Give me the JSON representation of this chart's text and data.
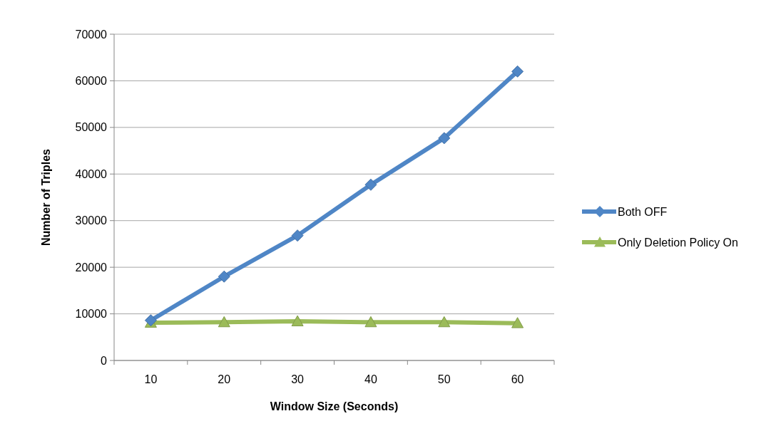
{
  "chart_data": {
    "type": "line",
    "xlabel": "Window Size (Seconds)",
    "ylabel": "Number of Triples",
    "categories": [
      "10",
      "20",
      "30",
      "40",
      "50",
      "60"
    ],
    "series": [
      {
        "name": "Both OFF",
        "color": "#4f86c6",
        "marker": "diamond",
        "values": [
          8600,
          18000,
          26800,
          37700,
          47700,
          62000
        ]
      },
      {
        "name": "Only Deletion Policy On",
        "color": "#9bbb59",
        "marker": "triangle",
        "values": [
          8100,
          8200,
          8400,
          8200,
          8200,
          8000
        ]
      }
    ],
    "ylim": [
      0,
      70000
    ],
    "yticks": [
      0,
      10000,
      20000,
      30000,
      40000,
      50000,
      60000,
      70000
    ],
    "grid": "y",
    "legend": "right"
  }
}
